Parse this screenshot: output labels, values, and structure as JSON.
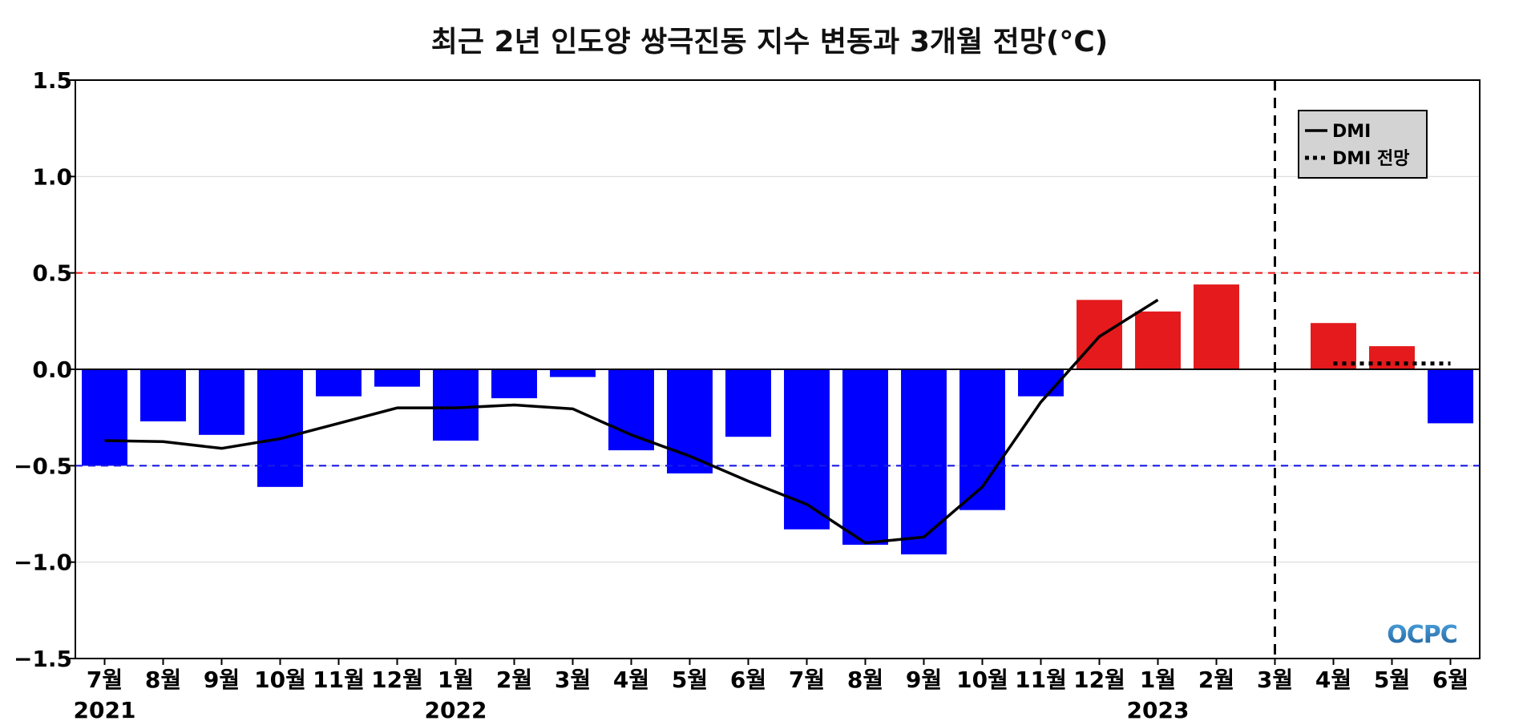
{
  "chart_data": {
    "type": "bar",
    "title": "최근 2년 인도양 쌍극진동 지수 변동과 3개월 전망(°C)",
    "xlabel": "",
    "ylabel": "",
    "ylim": [
      -1.5,
      1.5
    ],
    "yticks": [
      "1.5",
      "1.0",
      "0.5",
      "0.0",
      "−0.5",
      "−1.0",
      "−1.5"
    ],
    "ytick_values": [
      1.5,
      1.0,
      0.5,
      0.0,
      -0.5,
      -1.0,
      -1.5
    ],
    "categories": [
      "7월",
      "8월",
      "9월",
      "10월",
      "11월",
      "12월",
      "1월",
      "2월",
      "3월",
      "4월",
      "5월",
      "6월",
      "7월",
      "8월",
      "9월",
      "10월",
      "11월",
      "12월",
      "1월",
      "2월",
      "3월",
      "4월",
      "5월",
      "6월"
    ],
    "year_labels": [
      {
        "index": 0,
        "label": "2021"
      },
      {
        "index": 6,
        "label": "2022"
      },
      {
        "index": 18,
        "label": "2023"
      }
    ],
    "series": [
      {
        "kind": "bar",
        "values": [
          -0.5,
          -0.27,
          -0.34,
          -0.61,
          -0.14,
          -0.09,
          -0.37,
          -0.15,
          -0.04,
          -0.42,
          -0.54,
          -0.35,
          -0.83,
          -0.91,
          -0.96,
          -0.73,
          -0.14,
          0.36,
          0.3,
          0.44,
          null,
          0.24,
          0.12,
          -0.28
        ]
      },
      {
        "kind": "line",
        "name": "DMI",
        "values": [
          -0.37,
          -0.375,
          -0.41,
          -0.36,
          -0.28,
          -0.2,
          -0.2,
          -0.185,
          -0.205,
          -0.34,
          -0.45,
          -0.58,
          -0.7,
          -0.9,
          -0.87,
          -0.61,
          -0.17,
          0.17,
          0.36,
          null,
          null,
          null,
          null,
          null
        ]
      },
      {
        "kind": "dotted",
        "name": "DMI 전망",
        "values": [
          null,
          null,
          null,
          null,
          null,
          null,
          null,
          null,
          null,
          null,
          null,
          null,
          null,
          null,
          null,
          null,
          null,
          null,
          null,
          null,
          null,
          0.03,
          0.03,
          0.03
        ]
      }
    ],
    "reference_lines": [
      {
        "y": 0.5,
        "color": "#ee1c1c",
        "style": "dashed"
      },
      {
        "y": -0.5,
        "color": "#1a1ae6",
        "style": "dashed"
      },
      {
        "y": 0.0,
        "color": "#000000",
        "style": "solid"
      }
    ],
    "forecast_divider_index": 20,
    "grid": true,
    "legend_position": "top-right",
    "colors": {
      "positive_bar": "#e41a1c",
      "negative_bar": "#0000ff",
      "line": "#000000",
      "grid": "#d9d9d9",
      "legend_bg": "#d3d3d3"
    }
  },
  "logo": {
    "text": "OCPC",
    "color_top": "#4aa3df",
    "color_bottom": "#1f5f99"
  }
}
